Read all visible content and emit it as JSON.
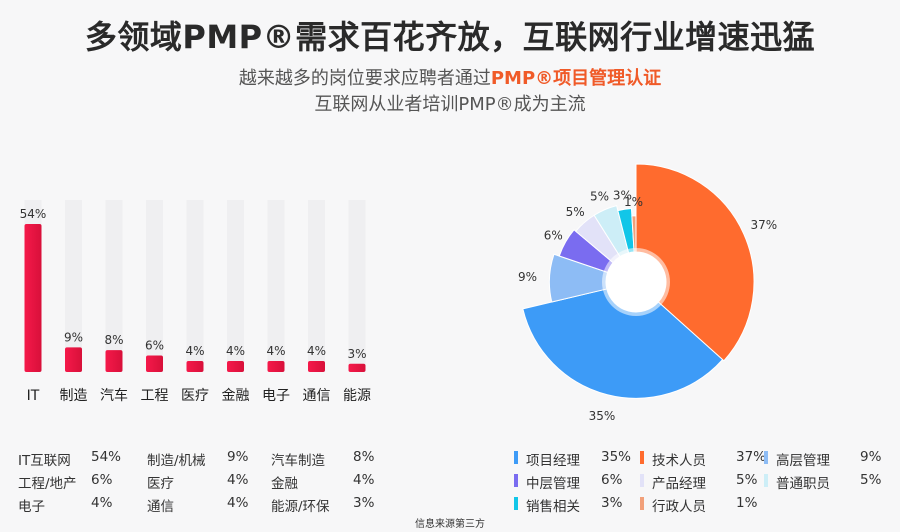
{
  "title": "多领域PMP®需求百花齐放，互联网行业增速迅猛",
  "subtitle1": {
    "prefix": "越来越多的岗位要求应聘者通过",
    "highlight": "PMP®项目管理认证"
  },
  "subtitle2": "互联网从业者培训PMP®成为主流",
  "source_note": "信息来源第三方",
  "colors": {
    "bar": "#ee1f4a",
    "bar_track": "#efeff1",
    "highlight": "#f05a28"
  },
  "chart_data": [
    {
      "type": "bar",
      "categories": [
        "IT",
        "制造",
        "汽车",
        "工程",
        "医疗",
        "金融",
        "电子",
        "通信",
        "能源"
      ],
      "values": [
        54,
        9,
        8,
        6,
        4,
        4,
        4,
        4,
        3
      ],
      "value_labels": [
        "54%",
        "9%",
        "8%",
        "6%",
        "4%",
        "4%",
        "4%",
        "4%",
        "3%"
      ],
      "ylim": [
        0,
        60
      ]
    },
    {
      "type": "pie",
      "variant": "rose-donut",
      "labels": [
        "技术人员",
        "项目经理",
        "高层管理",
        "中层管理",
        "产品经理",
        "普通职员",
        "销售相关",
        "行政人员"
      ],
      "values": [
        37,
        35,
        9,
        6,
        5,
        5,
        3,
        1
      ],
      "value_labels": [
        "37%",
        "35%",
        "9%",
        "6%",
        "5%",
        "5%",
        "3%",
        "1%"
      ],
      "colors": [
        "#ff6b2e",
        "#3d9bf7",
        "#8dbcf5",
        "#7a6cf0",
        "#e2e2f8",
        "#cdeef7",
        "#12c6e8",
        "#f2a07a"
      ]
    }
  ],
  "industry_table": [
    [
      {
        "name": "IT互联网",
        "value": "54%"
      },
      {
        "name": "制造/机械",
        "value": "9%"
      },
      {
        "name": "汽车制造",
        "value": "8%"
      }
    ],
    [
      {
        "name": "工程/地产",
        "value": "6%"
      },
      {
        "name": "医疗",
        "value": "4%"
      },
      {
        "name": "金融",
        "value": "4%"
      }
    ],
    [
      {
        "name": "电子",
        "value": "4%"
      },
      {
        "name": "通信",
        "value": "4%"
      },
      {
        "name": "能源/环保",
        "value": "3%"
      }
    ]
  ],
  "role_legend": [
    [
      {
        "name": "项目经理",
        "value": "35%",
        "color": "#3d9bf7"
      },
      {
        "name": "技术人员",
        "value": "37%",
        "color": "#ff6b2e"
      },
      {
        "name": "高层管理",
        "value": "9%",
        "color": "#8dbcf5"
      }
    ],
    [
      {
        "name": "中层管理",
        "value": "6%",
        "color": "#7a6cf0"
      },
      {
        "name": "产品经理",
        "value": "5%",
        "color": "#e2e2f8"
      },
      {
        "name": "普通职员",
        "value": "5%",
        "color": "#cdeef7"
      }
    ],
    [
      {
        "name": "销售相关",
        "value": "3%",
        "color": "#12c6e8"
      },
      {
        "name": "行政人员",
        "value": "1%",
        "color": "#f2a07a"
      }
    ]
  ]
}
